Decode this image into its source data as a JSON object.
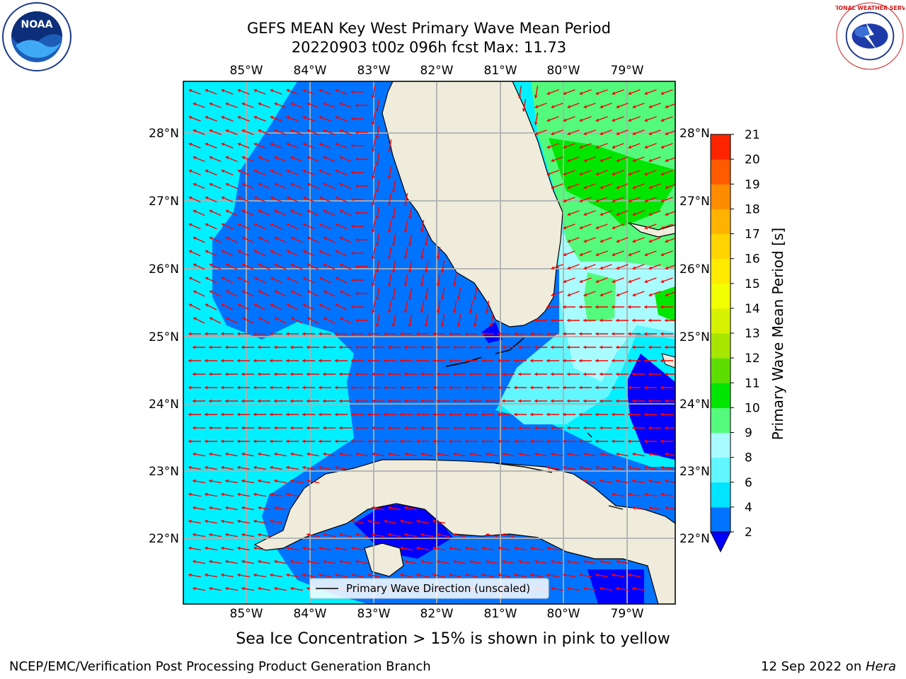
{
  "title": {
    "line1": "GEFS MEAN Key West Primary Wave Mean Period",
    "line2": "20220903 t00z 096h fcst   Max: 11.73"
  },
  "map": {
    "lon_ticks": [
      "85°W",
      "84°W",
      "83°W",
      "82°W",
      "81°W",
      "80°W",
      "79°W"
    ],
    "lat_ticks": [
      "28°N",
      "27°N",
      "26°N",
      "25°N",
      "24°N",
      "23°N",
      "22°N"
    ],
    "legend_label": "Primary Wave Direction (unscaled)",
    "land_color": "#efecdc",
    "arrow_color": "#ff0000",
    "grid_color": "#b0b0b0"
  },
  "colorbar": {
    "label": "Primary Wave Mean Period [s]",
    "ticks": [
      "2",
      "4",
      "6",
      "8",
      "9",
      "10",
      "11",
      "12",
      "13",
      "14",
      "15",
      "16",
      "17",
      "18",
      "19",
      "20",
      "21"
    ],
    "colors": [
      "#0073ff",
      "#00e4ff",
      "#60f7ff",
      "#a8fcff",
      "#54fa7c",
      "#00e600",
      "#5cdf00",
      "#a6e600",
      "#d7f200",
      "#f2ff00",
      "#ffea00",
      "#ffd400",
      "#ffb300",
      "#ff8c00",
      "#ff5a00",
      "#ff2400"
    ],
    "under_color": "#0000ff"
  },
  "subtitle": "Sea Ice Concentration > 15% is shown in pink to yellow",
  "footer": {
    "left": "NCEP/EMC/Verification Post Processing Product Generation Branch",
    "right_prefix": "12 Sep 2022 on ",
    "right_host": "Hera"
  },
  "logos": {
    "noaa_text": "NOAA",
    "nws_text": "NATIONAL WEATHER SERVICE"
  }
}
